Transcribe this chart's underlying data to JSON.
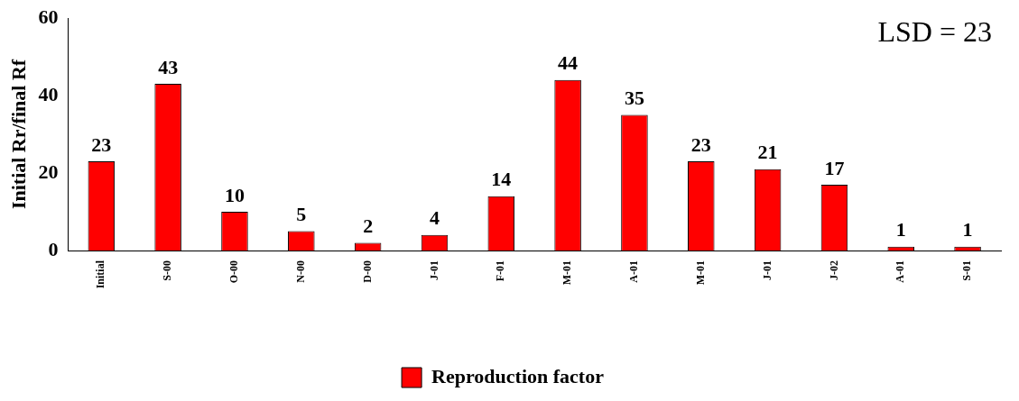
{
  "chart_data": {
    "type": "bar",
    "ylabel": "Initial Rr/final Rf",
    "categories": [
      "Initial",
      "S-00",
      "O-00",
      "N-00",
      "D-00",
      "J-01",
      "F-01",
      "M-01",
      "A-01",
      "M-01",
      "J-01",
      "J-02",
      "A-01",
      "S-01"
    ],
    "series": [
      {
        "name": "Reproduction factor",
        "color": "#ff0000",
        "values": [
          23,
          43,
          10,
          5,
          2,
          4,
          14,
          44,
          35,
          23,
          21,
          17,
          1,
          1
        ]
      }
    ],
    "ylim": [
      0,
      60
    ],
    "yticks": [
      0,
      20,
      40,
      60
    ],
    "grid": false,
    "legend": "bottom",
    "data_labels": true,
    "annotations": [
      "LSD = 23"
    ]
  }
}
